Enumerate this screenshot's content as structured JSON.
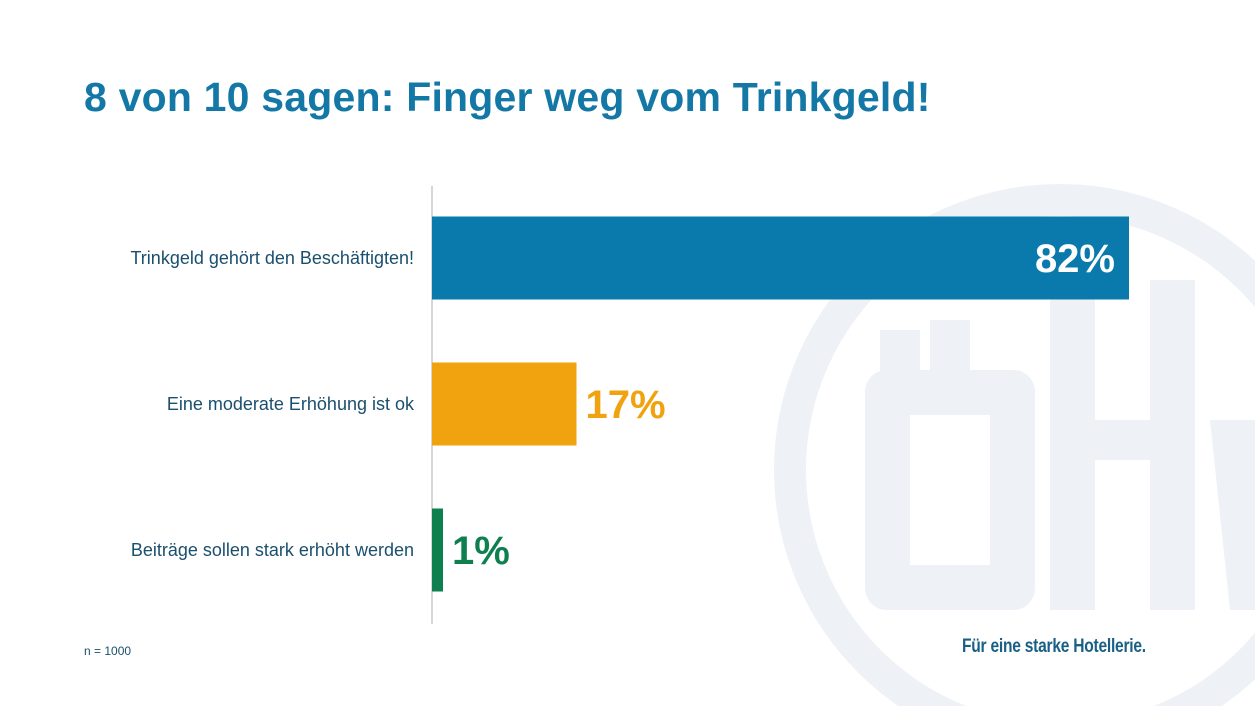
{
  "title": "8 von 10 sagen: Finger weg vom Trinkgeld!",
  "chart_data": {
    "type": "bar",
    "orientation": "horizontal",
    "categories": [
      "Trinkgeld gehört den Beschäftigten!",
      "Eine moderate Erhöhung ist ok",
      "Beiträge sollen stark erhöht werden"
    ],
    "values": [
      82,
      17,
      1
    ],
    "value_labels": [
      "82%",
      "17%",
      "1%"
    ],
    "unit": "%",
    "colors": [
      "#0a7aad",
      "#f0a20f",
      "#0e7f4f"
    ],
    "xlim": [
      0,
      82
    ],
    "grid": false,
    "legend": "none",
    "xlabel": "",
    "ylabel": ""
  },
  "footnote": "n = 1000",
  "slogan": "Für eine starke Hotellerie.",
  "logo": {
    "text": "ÖHV",
    "color": "#eef1f5"
  }
}
